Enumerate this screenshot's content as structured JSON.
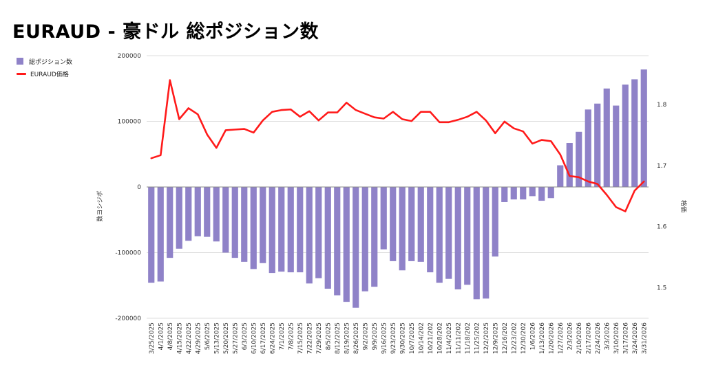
{
  "title": "EURAUD - 豪ドル 総ポジション数",
  "legend": {
    "bar_label": "総ポジション数",
    "line_label": "EURAUD価格"
  },
  "colors": {
    "bar": "#8f82c8",
    "line": "#ff1a1a",
    "grid": "#dddddd",
    "zero": "#888888"
  },
  "chart_data": {
    "type": "bar",
    "title": "EURAUD - 豪ドル 総ポジション数",
    "ylabel": "数ヨシジボ",
    "y2label": "格価",
    "ylim": [
      -200000,
      200000
    ],
    "y2lim": [
      1.45,
      1.88
    ],
    "yticks": [
      "200000",
      "100000",
      "0",
      "-100000",
      "-200000"
    ],
    "y2ticks": [
      "1.8",
      "1.7",
      "1.6",
      "1.5"
    ],
    "grid": true,
    "legend_position": "top-left",
    "x_labels": [
      "3/25/2025",
      "4/1/2025",
      "4/8/2025",
      "4/15/2025",
      "4/22/2025",
      "4/29/2025",
      "5/6/2025",
      "5/13/2025",
      "5/20/2025",
      "5/27/2025",
      "6/3/2025",
      "6/10/2025",
      "6/17/2025",
      "6/24/2025",
      "7/1/2025",
      "7/8/2025",
      "7/15/2025",
      "7/22/2025",
      "7/29/2025",
      "8/5/2025",
      "8/12/2025",
      "8/19/2025",
      "8/26/2025",
      "9/2/2025",
      "9/9/2025",
      "9/16/2025",
      "9/23/2025",
      "9/30/2025",
      "10/7/2025",
      "10/14/202",
      "10/21/202",
      "10/28/202",
      "11/4/2025",
      "11/11/202",
      "11/18/202",
      "11/25/202",
      "12/2/2025",
      "12/9/2025",
      "12/16/202",
      "12/23/202",
      "12/30/202",
      "1/6/2026",
      "1/13/2026",
      "1/20/2026",
      "1/27/2026",
      "2/3/2026",
      "2/10/2026",
      "2/17/2026",
      "2/24/2026",
      "3/3/2026",
      "3/10/2026",
      "3/17/2026",
      "3/24/2026",
      "3/31/2026"
    ],
    "series": [
      {
        "name": "総ポジション数",
        "type": "bar",
        "values": [
          -146000,
          -144000,
          -108000,
          -94000,
          -82000,
          -75000,
          -76000,
          -83000,
          -100000,
          -108000,
          -114000,
          -125000,
          -116000,
          -131000,
          -129000,
          -130000,
          -130000,
          -147000,
          -139000,
          -155000,
          -165000,
          -175000,
          -184000,
          -159000,
          -152000,
          -95000,
          -113000,
          -127000,
          -113000,
          -114000,
          -130000,
          -146000,
          -140000,
          -156000,
          -149000,
          -171000,
          -170000,
          -106000,
          -23000,
          -19000,
          -19000,
          -14000,
          -21000,
          -17000,
          33000,
          67000,
          84000,
          118000,
          127000,
          150000,
          124000,
          156000,
          164000,
          179000
        ]
      },
      {
        "name": "EURAUD価格",
        "type": "line",
        "axis": "right",
        "values": [
          1.712,
          1.717,
          1.84,
          1.776,
          1.794,
          1.784,
          1.751,
          1.729,
          1.758,
          1.759,
          1.76,
          1.754,
          1.774,
          1.788,
          1.791,
          1.792,
          1.78,
          1.789,
          1.774,
          1.787,
          1.787,
          1.803,
          1.791,
          1.785,
          1.779,
          1.777,
          1.788,
          1.776,
          1.773,
          1.788,
          1.788,
          1.771,
          1.771,
          1.775,
          1.78,
          1.788,
          1.774,
          1.753,
          1.772,
          1.761,
          1.756,
          1.736,
          1.742,
          1.74,
          1.718,
          1.683,
          1.681,
          1.674,
          1.67,
          1.652,
          1.632,
          1.625,
          1.659,
          1.674
        ]
      }
    ]
  }
}
